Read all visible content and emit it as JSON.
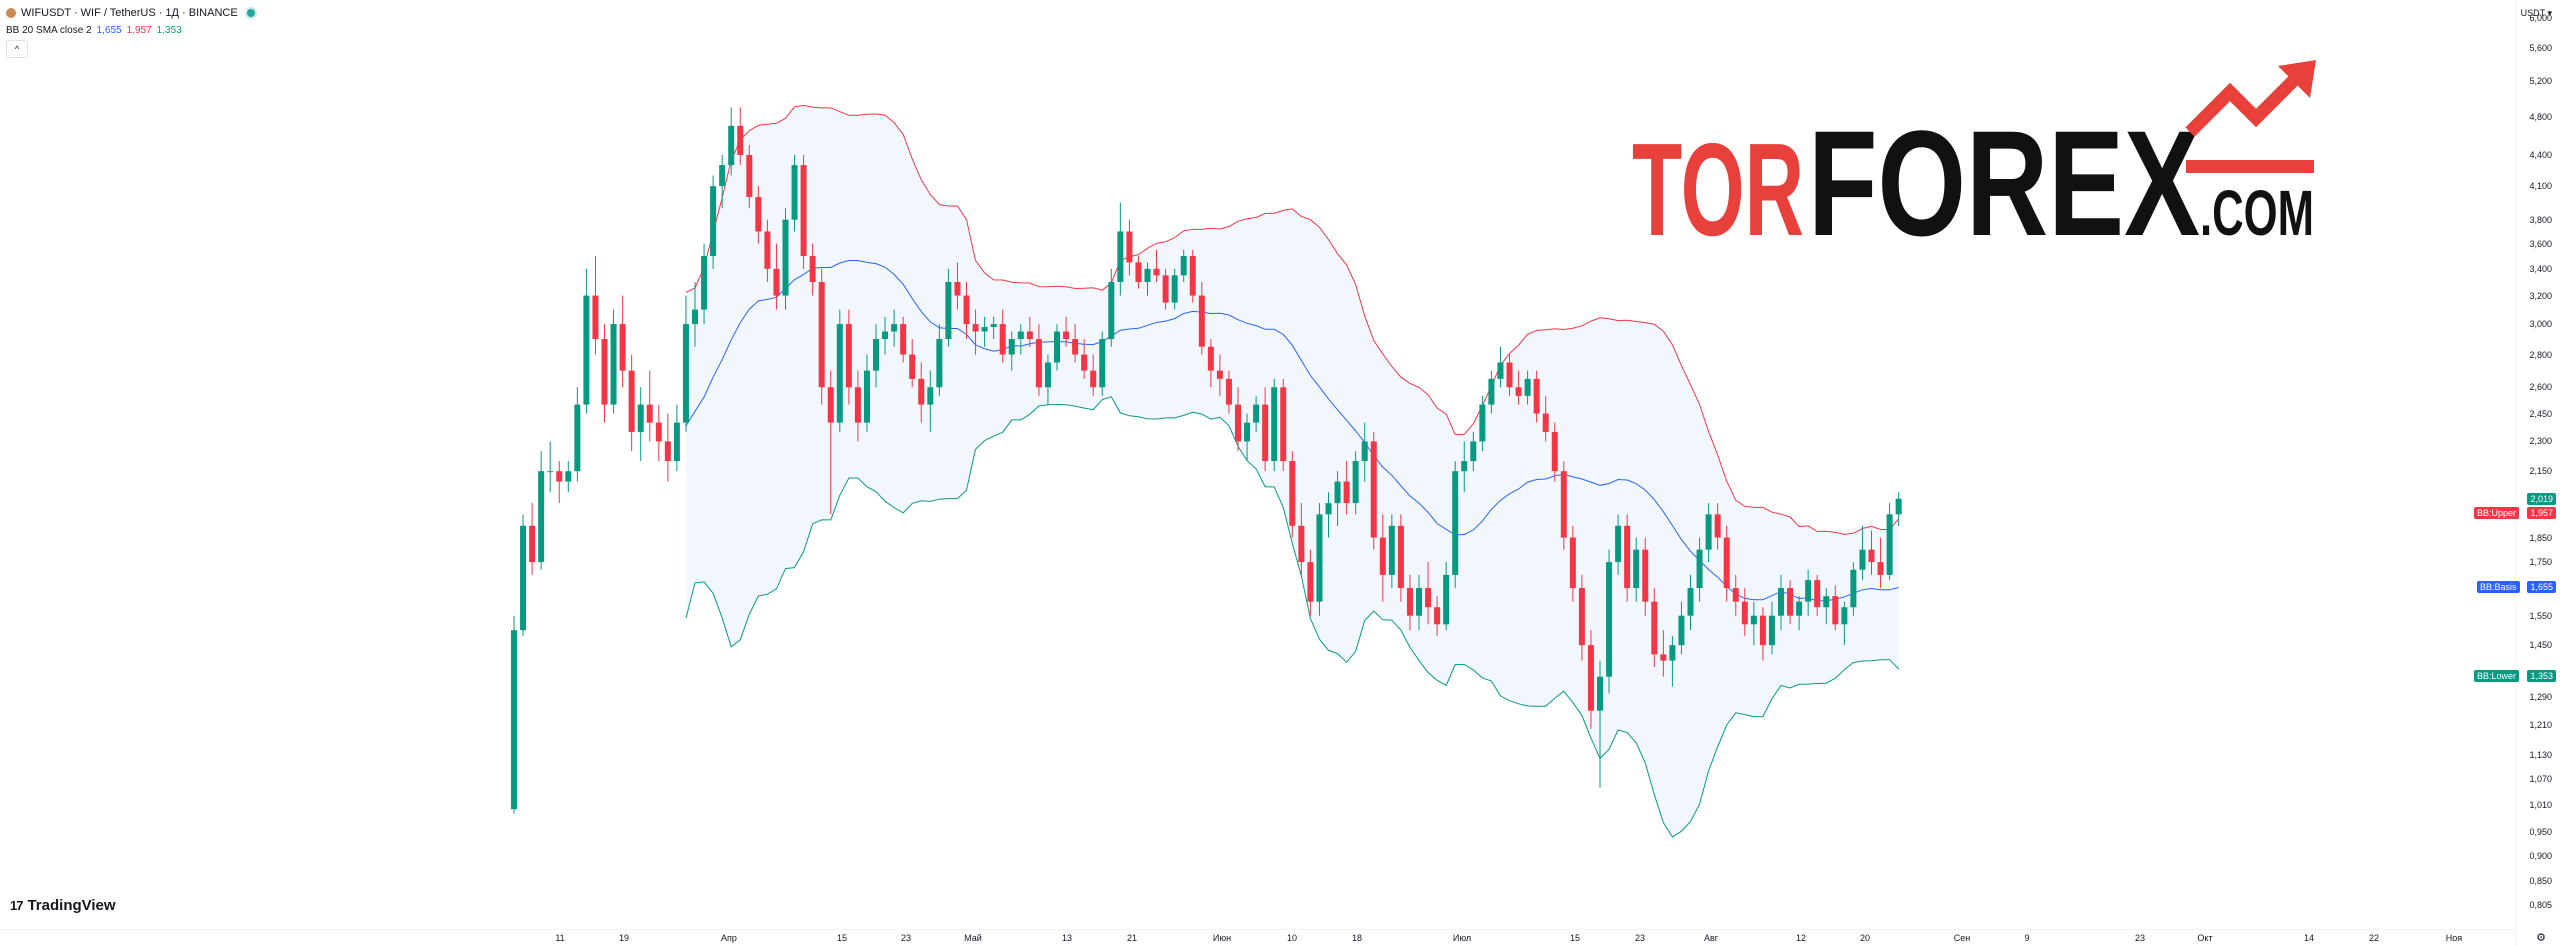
{
  "header": {
    "symbol": "WIFUSDT · WIF / TetherUS · 1Д · BINANCE"
  },
  "indicator": {
    "name": "BB 20 SMA close 2",
    "basis": "1,655",
    "upper": "1,957",
    "lower": "1,353"
  },
  "collapse_label": "^",
  "price_axis": {
    "currency": "USDT ▾",
    "ticks": [
      "6,000",
      "5,600",
      "5,200",
      "4,800",
      "4,400",
      "4,100",
      "3,800",
      "3,600",
      "3,400",
      "3,200",
      "3,000",
      "2,800",
      "2,600",
      "2,450",
      "2,300",
      "2,150",
      "1,850",
      "1,750",
      "1,550",
      "1,450",
      "1,290",
      "1,210",
      "1,130",
      "1,070",
      "1,010",
      "0,950",
      "0,900",
      "0,850",
      "0,805"
    ],
    "last_price_badge": "2,019",
    "upper_badge": "1,957",
    "basis_badge": "1,655",
    "lower_badge": "1,353",
    "upper_label": "BB:Upper",
    "basis_label": "BB:Basis",
    "lower_label": "BB:Lower"
  },
  "time_axis": {
    "ticks": [
      "11",
      "19",
      "Апр",
      "15",
      "23",
      "Май",
      "13",
      "21",
      "Июн",
      "10",
      "18",
      "Июл",
      "15",
      "23",
      "Авг",
      "12",
      "20",
      "Сен",
      "9",
      "23",
      "Окт",
      "14",
      "22",
      "Ноя"
    ]
  },
  "branding": {
    "tradingview": "TradingView",
    "tv_mark": "17",
    "watermark_tor": "TOR",
    "watermark_forex": "FOREX",
    "watermark_com": ".COM"
  },
  "colors": {
    "up": "#089981",
    "down": "#f23645",
    "basis": "#2962ff",
    "band_fill": "#e3eefa",
    "watermark_red": "#e8403b",
    "watermark_black": "#111111"
  },
  "chart_data": {
    "type": "candlestick",
    "timeframe": "1D",
    "ylim": [
      0.805,
      6.0
    ],
    "scale": "log",
    "last_price": 2.019,
    "bollinger": {
      "basis": 1.655,
      "upper": 1.957,
      "lower": 1.353
    },
    "candles": [
      [
        1.0,
        1.55,
        0.99,
        1.5
      ],
      [
        1.5,
        1.95,
        1.48,
        1.9
      ],
      [
        1.9,
        2.0,
        1.7,
        1.75
      ],
      [
        1.75,
        2.25,
        1.72,
        2.15
      ],
      [
        2.15,
        2.3,
        2.05,
        2.15
      ],
      [
        2.15,
        2.2,
        2.0,
        2.1
      ],
      [
        2.1,
        2.2,
        2.05,
        2.15
      ],
      [
        2.15,
        2.6,
        2.1,
        2.5
      ],
      [
        2.5,
        3.4,
        2.45,
        3.2
      ],
      [
        3.2,
        3.5,
        2.8,
        2.9
      ],
      [
        2.9,
        3.0,
        2.4,
        2.5
      ],
      [
        2.5,
        3.1,
        2.45,
        3.0
      ],
      [
        3.0,
        3.2,
        2.6,
        2.7
      ],
      [
        2.7,
        2.8,
        2.25,
        2.35
      ],
      [
        2.35,
        2.6,
        2.2,
        2.5
      ],
      [
        2.5,
        2.7,
        2.3,
        2.4
      ],
      [
        2.4,
        2.5,
        2.2,
        2.3
      ],
      [
        2.3,
        2.45,
        2.1,
        2.2
      ],
      [
        2.2,
        2.5,
        2.15,
        2.4
      ],
      [
        2.4,
        3.2,
        2.35,
        3.0
      ],
      [
        3.0,
        3.3,
        2.85,
        3.1
      ],
      [
        3.1,
        3.6,
        3.0,
        3.5
      ],
      [
        3.5,
        4.2,
        3.4,
        4.1
      ],
      [
        4.1,
        4.4,
        3.9,
        4.3
      ],
      [
        4.3,
        4.9,
        4.2,
        4.7
      ],
      [
        4.7,
        4.9,
        4.3,
        4.4
      ],
      [
        4.4,
        4.5,
        3.9,
        4.0
      ],
      [
        4.0,
        4.1,
        3.6,
        3.7
      ],
      [
        3.7,
        3.8,
        3.3,
        3.4
      ],
      [
        3.4,
        3.6,
        3.1,
        3.2
      ],
      [
        3.2,
        3.9,
        3.1,
        3.8
      ],
      [
        3.8,
        4.4,
        3.7,
        4.3
      ],
      [
        4.3,
        4.4,
        3.4,
        3.5
      ],
      [
        3.5,
        3.6,
        3.2,
        3.3
      ],
      [
        3.3,
        3.4,
        2.5,
        2.6
      ],
      [
        2.6,
        2.7,
        1.95,
        2.4
      ],
      [
        2.4,
        3.1,
        2.35,
        3.0
      ],
      [
        3.0,
        3.1,
        2.5,
        2.6
      ],
      [
        2.6,
        2.7,
        2.3,
        2.4
      ],
      [
        2.4,
        2.8,
        2.35,
        2.7
      ],
      [
        2.7,
        3.0,
        2.6,
        2.9
      ],
      [
        2.9,
        3.05,
        2.8,
        2.95
      ],
      [
        2.95,
        3.1,
        2.85,
        3.0
      ],
      [
        3.0,
        3.05,
        2.75,
        2.8
      ],
      [
        2.8,
        2.9,
        2.6,
        2.65
      ],
      [
        2.65,
        2.75,
        2.4,
        2.5
      ],
      [
        2.5,
        2.7,
        2.35,
        2.6
      ],
      [
        2.6,
        3.0,
        2.55,
        2.9
      ],
      [
        2.9,
        3.4,
        2.85,
        3.3
      ],
      [
        3.3,
        3.45,
        3.1,
        3.2
      ],
      [
        3.2,
        3.3,
        2.9,
        3.0
      ],
      [
        3.0,
        3.1,
        2.8,
        2.95
      ],
      [
        2.95,
        3.05,
        2.85,
        2.98
      ],
      [
        2.98,
        3.05,
        2.9,
        3.0
      ],
      [
        3.0,
        3.1,
        2.75,
        2.8
      ],
      [
        2.8,
        2.95,
        2.7,
        2.9
      ],
      [
        2.9,
        3.0,
        2.8,
        2.95
      ],
      [
        2.95,
        3.05,
        2.85,
        2.9
      ],
      [
        2.9,
        3.0,
        2.55,
        2.6
      ],
      [
        2.6,
        2.8,
        2.5,
        2.75
      ],
      [
        2.75,
        3.0,
        2.7,
        2.95
      ],
      [
        2.95,
        3.05,
        2.85,
        2.9
      ],
      [
        2.9,
        3.0,
        2.75,
        2.8
      ],
      [
        2.8,
        2.9,
        2.65,
        2.7
      ],
      [
        2.7,
        2.8,
        2.55,
        2.6
      ],
      [
        2.6,
        2.95,
        2.55,
        2.9
      ],
      [
        2.9,
        3.4,
        2.85,
        3.3
      ],
      [
        3.3,
        3.95,
        3.2,
        3.7
      ],
      [
        3.7,
        3.8,
        3.35,
        3.45
      ],
      [
        3.45,
        3.5,
        3.25,
        3.3
      ],
      [
        3.3,
        3.45,
        3.2,
        3.4
      ],
      [
        3.4,
        3.55,
        3.3,
        3.35
      ],
      [
        3.35,
        3.4,
        3.1,
        3.15
      ],
      [
        3.15,
        3.4,
        3.1,
        3.35
      ],
      [
        3.35,
        3.55,
        3.3,
        3.5
      ],
      [
        3.5,
        3.55,
        3.15,
        3.2
      ],
      [
        3.2,
        3.3,
        2.8,
        2.85
      ],
      [
        2.85,
        2.9,
        2.6,
        2.7
      ],
      [
        2.7,
        2.8,
        2.55,
        2.65
      ],
      [
        2.65,
        2.7,
        2.45,
        2.5
      ],
      [
        2.5,
        2.6,
        2.25,
        2.3
      ],
      [
        2.3,
        2.45,
        2.2,
        2.4
      ],
      [
        2.4,
        2.55,
        2.35,
        2.5
      ],
      [
        2.5,
        2.6,
        2.15,
        2.2
      ],
      [
        2.2,
        2.65,
        2.15,
        2.6
      ],
      [
        2.6,
        2.65,
        2.15,
        2.2
      ],
      [
        2.2,
        2.25,
        1.85,
        1.9
      ],
      [
        1.9,
        2.0,
        1.7,
        1.75
      ],
      [
        1.75,
        1.8,
        1.55,
        1.6
      ],
      [
        1.6,
        2.0,
        1.55,
        1.95
      ],
      [
        1.95,
        2.05,
        1.85,
        2.0
      ],
      [
        2.0,
        2.15,
        1.9,
        2.1
      ],
      [
        2.1,
        2.2,
        1.95,
        2.0
      ],
      [
        2.0,
        2.25,
        1.95,
        2.2
      ],
      [
        2.2,
        2.4,
        2.1,
        2.3
      ],
      [
        2.3,
        2.35,
        1.8,
        1.85
      ],
      [
        1.85,
        1.95,
        1.6,
        1.7
      ],
      [
        1.7,
        1.95,
        1.65,
        1.9
      ],
      [
        1.9,
        1.95,
        1.6,
        1.65
      ],
      [
        1.65,
        1.7,
        1.5,
        1.55
      ],
      [
        1.55,
        1.7,
        1.5,
        1.65
      ],
      [
        1.65,
        1.75,
        1.52,
        1.58
      ],
      [
        1.58,
        1.62,
        1.48,
        1.52
      ],
      [
        1.52,
        1.75,
        1.5,
        1.7
      ],
      [
        1.7,
        2.2,
        1.65,
        2.15
      ],
      [
        2.15,
        2.3,
        2.05,
        2.2
      ],
      [
        2.2,
        2.35,
        2.15,
        2.3
      ],
      [
        2.3,
        2.55,
        2.25,
        2.5
      ],
      [
        2.5,
        2.7,
        2.45,
        2.65
      ],
      [
        2.65,
        2.85,
        2.6,
        2.75
      ],
      [
        2.75,
        2.8,
        2.55,
        2.6
      ],
      [
        2.6,
        2.7,
        2.5,
        2.55
      ],
      [
        2.55,
        2.7,
        2.5,
        2.65
      ],
      [
        2.65,
        2.7,
        2.4,
        2.45
      ],
      [
        2.45,
        2.55,
        2.3,
        2.35
      ],
      [
        2.35,
        2.4,
        2.1,
        2.15
      ],
      [
        2.15,
        2.2,
        1.8,
        1.85
      ],
      [
        1.85,
        1.9,
        1.6,
        1.65
      ],
      [
        1.65,
        1.7,
        1.4,
        1.45
      ],
      [
        1.45,
        1.5,
        1.2,
        1.25
      ],
      [
        1.25,
        1.4,
        1.05,
        1.35
      ],
      [
        1.35,
        1.8,
        1.3,
        1.75
      ],
      [
        1.75,
        1.95,
        1.7,
        1.9
      ],
      [
        1.9,
        1.95,
        1.6,
        1.65
      ],
      [
        1.65,
        1.85,
        1.6,
        1.8
      ],
      [
        1.8,
        1.85,
        1.55,
        1.6
      ],
      [
        1.6,
        1.65,
        1.38,
        1.42
      ],
      [
        1.42,
        1.5,
        1.35,
        1.4
      ],
      [
        1.4,
        1.48,
        1.32,
        1.45
      ],
      [
        1.45,
        1.6,
        1.42,
        1.55
      ],
      [
        1.55,
        1.7,
        1.5,
        1.65
      ],
      [
        1.65,
        1.85,
        1.6,
        1.8
      ],
      [
        1.8,
        2.0,
        1.75,
        1.95
      ],
      [
        1.95,
        2.0,
        1.8,
        1.85
      ],
      [
        1.85,
        1.9,
        1.6,
        1.65
      ],
      [
        1.65,
        1.7,
        1.55,
        1.6
      ],
      [
        1.6,
        1.65,
        1.48,
        1.52
      ],
      [
        1.52,
        1.6,
        1.45,
        1.55
      ],
      [
        1.55,
        1.58,
        1.4,
        1.45
      ],
      [
        1.45,
        1.6,
        1.42,
        1.55
      ],
      [
        1.55,
        1.7,
        1.5,
        1.65
      ],
      [
        1.65,
        1.68,
        1.52,
        1.55
      ],
      [
        1.55,
        1.62,
        1.5,
        1.6
      ],
      [
        1.6,
        1.72,
        1.55,
        1.68
      ],
      [
        1.68,
        1.7,
        1.55,
        1.58
      ],
      [
        1.58,
        1.65,
        1.52,
        1.62
      ],
      [
        1.62,
        1.66,
        1.5,
        1.52
      ],
      [
        1.52,
        1.6,
        1.45,
        1.58
      ],
      [
        1.58,
        1.75,
        1.55,
        1.72
      ],
      [
        1.72,
        1.9,
        1.68,
        1.8
      ],
      [
        1.8,
        1.88,
        1.7,
        1.75
      ],
      [
        1.75,
        1.85,
        1.65,
        1.7
      ],
      [
        1.7,
        2.0,
        1.68,
        1.95
      ],
      [
        1.95,
        2.05,
        1.9,
        2.02
      ]
    ]
  }
}
